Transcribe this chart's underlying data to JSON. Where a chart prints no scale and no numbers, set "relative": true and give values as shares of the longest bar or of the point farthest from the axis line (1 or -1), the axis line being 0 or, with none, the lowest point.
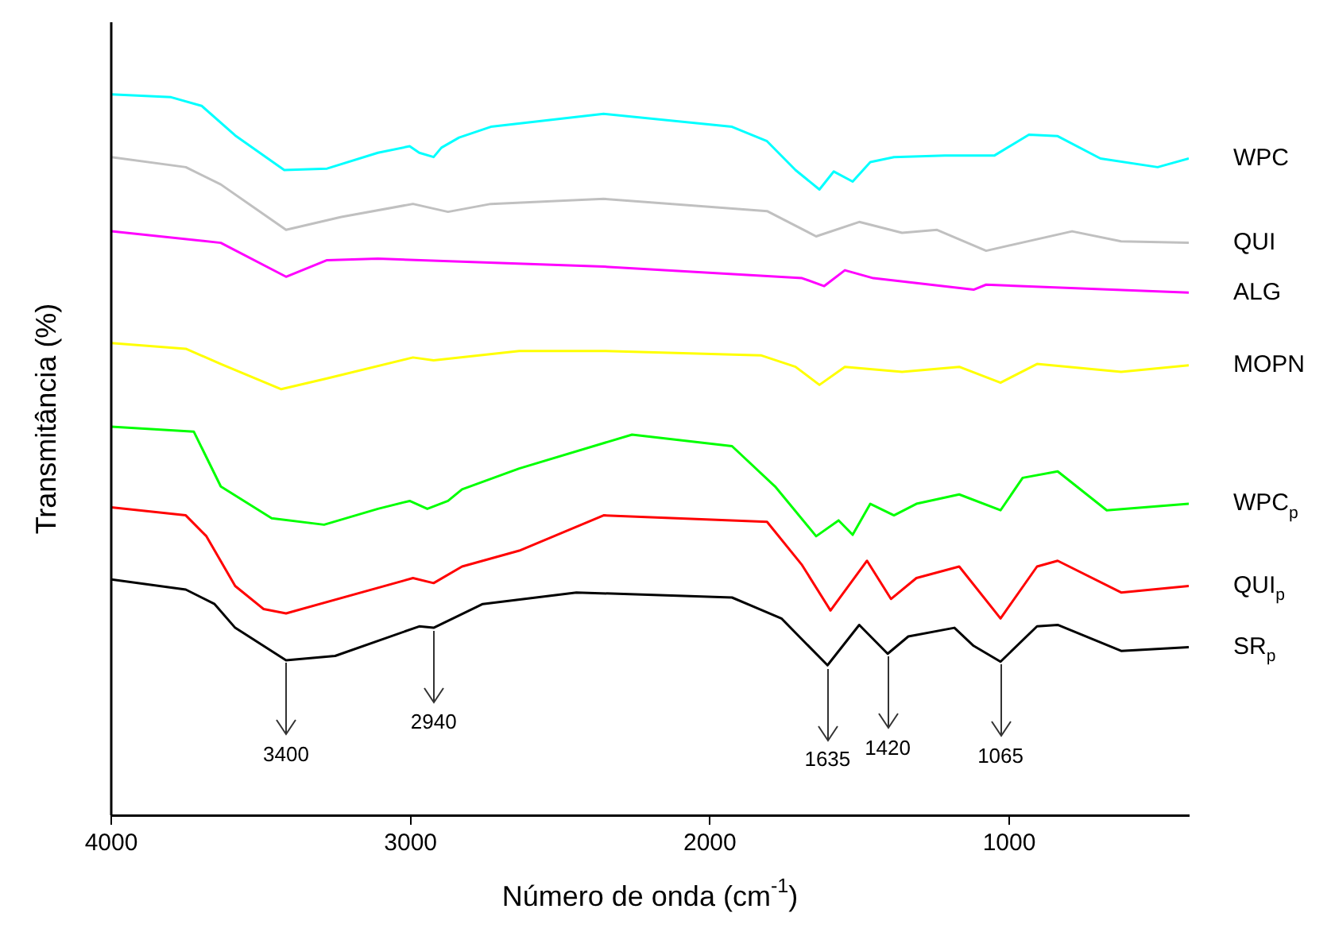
{
  "chart_data": {
    "type": "line",
    "relative": true,
    "xlabel": "Número de onda (cm$^{-1}$)",
    "ylabel": "Transmitância (%)",
    "xlim": [
      4000,
      400
    ],
    "xticks": [
      4000,
      3000,
      2000,
      1000
    ],
    "grid": false,
    "legend": false,
    "series": [
      {
        "name": "WPC",
        "color": "#00ffff",
        "x": [
          4000,
          3800,
          3698,
          3586,
          3422,
          3279,
          3109,
          3003,
          2971,
          2923,
          2897,
          2838,
          2732,
          2355,
          1926,
          1809,
          1714,
          1634,
          1586,
          1523,
          1464,
          1385,
          1215,
          1050,
          934,
          838,
          695,
          504,
          400
        ],
        "values": [
          1,
          0.996,
          0.984,
          0.943,
          0.895,
          0.897,
          0.919,
          0.928,
          0.919,
          0.913,
          0.926,
          0.94,
          0.955,
          0.973,
          0.955,
          0.935,
          0.895,
          0.868,
          0.893,
          0.879,
          0.906,
          0.913,
          0.915,
          0.915,
          0.944,
          0.942,
          0.911,
          0.899,
          0.911
        ]
      },
      {
        "name": "QUI",
        "color": "#c0c0c0",
        "x": [
          4000,
          3751,
          3634,
          3416,
          3231,
          2992,
          2875,
          2732,
          2355,
          1809,
          1645,
          1501,
          1358,
          1241,
          1077,
          790,
          626,
          400
        ],
        "values": [
          0.913,
          0.899,
          0.875,
          0.812,
          0.83,
          0.848,
          0.837,
          0.848,
          0.855,
          0.838,
          0.803,
          0.823,
          0.808,
          0.812,
          0.783,
          0.81,
          0.796,
          0.794
        ]
      },
      {
        "name": "ALG",
        "color": "#ff00ff",
        "x": [
          4000,
          3634,
          3416,
          3279,
          3109,
          2355,
          1692,
          1618,
          1549,
          1454,
          1119,
          1077,
          400
        ],
        "values": [
          0.81,
          0.794,
          0.747,
          0.77,
          0.772,
          0.761,
          0.745,
          0.734,
          0.756,
          0.745,
          0.729,
          0.736,
          0.725
        ]
      },
      {
        "name": "MOPN",
        "color": "#ffff00",
        "x": [
          4000,
          3751,
          3634,
          3432,
          3279,
          2992,
          2923,
          2637,
          2355,
          1830,
          1714,
          1634,
          1549,
          1358,
          1167,
          1029,
          907,
          626,
          400
        ],
        "values": [
          0.655,
          0.647,
          0.626,
          0.591,
          0.606,
          0.635,
          0.631,
          0.644,
          0.644,
          0.638,
          0.622,
          0.597,
          0.622,
          0.615,
          0.622,
          0.6,
          0.626,
          0.615,
          0.624
        ]
      },
      {
        "name": "WPC$_{p}$",
        "color": "#00ff00",
        "x": [
          4000,
          3724,
          3634,
          3464,
          3289,
          3109,
          3003,
          2944,
          2875,
          2828,
          2637,
          2260,
          1926,
          1782,
          1645,
          1570,
          1523,
          1464,
          1385,
          1310,
          1167,
          1029,
          955,
          838,
          674,
          400
        ],
        "values": [
          0.539,
          0.532,
          0.456,
          0.412,
          0.403,
          0.425,
          0.436,
          0.425,
          0.436,
          0.452,
          0.481,
          0.528,
          0.512,
          0.456,
          0.387,
          0.409,
          0.389,
          0.432,
          0.416,
          0.432,
          0.445,
          0.423,
          0.468,
          0.477,
          0.423,
          0.432
        ]
      },
      {
        "name": "QUI$_{p}$",
        "color": "#ff0000",
        "x": [
          4000,
          3751,
          3682,
          3586,
          3491,
          3416,
          2992,
          2923,
          2828,
          2637,
          2355,
          1809,
          1692,
          1597,
          1475,
          1395,
          1310,
          1167,
          1029,
          907,
          838,
          626,
          400
        ],
        "values": [
          0.427,
          0.416,
          0.387,
          0.318,
          0.286,
          0.28,
          0.329,
          0.322,
          0.345,
          0.367,
          0.416,
          0.407,
          0.347,
          0.284,
          0.353,
          0.3,
          0.329,
          0.345,
          0.273,
          0.345,
          0.353,
          0.309,
          0.318
        ]
      },
      {
        "name": "SR$_{p}$",
        "color": "#000000",
        "x": [
          4000,
          3751,
          3655,
          3586,
          3416,
          3252,
          2971,
          2923,
          2759,
          2446,
          1926,
          1761,
          1607,
          1501,
          1406,
          1337,
          1183,
          1119,
          1029,
          907,
          838,
          626,
          400
        ],
        "values": [
          0.327,
          0.313,
          0.293,
          0.26,
          0.215,
          0.221,
          0.262,
          0.26,
          0.293,
          0.309,
          0.302,
          0.273,
          0.208,
          0.264,
          0.224,
          0.248,
          0.26,
          0.235,
          0.213,
          0.262,
          0.264,
          0.228,
          0.233
        ]
      }
    ],
    "annotations": [
      {
        "text": "3400",
        "x": 3416,
        "y": 0.215
      },
      {
        "text": "2940",
        "x": 2923,
        "y": 0.26
      },
      {
        "text": "1635",
        "x": 1607,
        "y": 0.208
      },
      {
        "text": "1420",
        "x": 1406,
        "y": 0.224
      },
      {
        "text": "1065",
        "x": 1029,
        "y": 0.213
      }
    ]
  }
}
